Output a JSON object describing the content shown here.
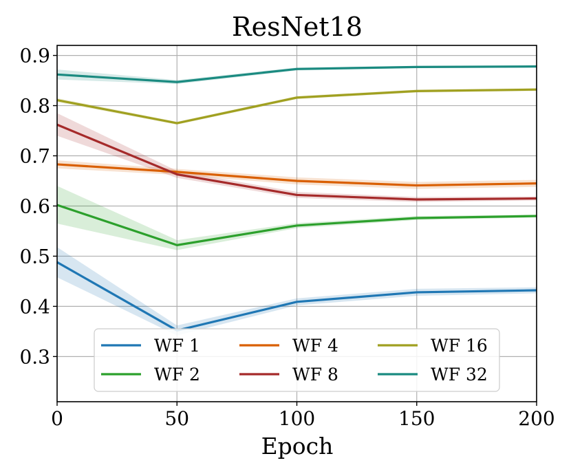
{
  "chart_data": {
    "type": "line",
    "title": "ResNet18",
    "xlabel": "Epoch",
    "ylabel": "",
    "xlim": [
      0,
      200
    ],
    "ylim": [
      0.21,
      0.92
    ],
    "xticks": [
      0,
      50,
      100,
      150,
      200
    ],
    "xtick_labels": [
      "0",
      "50",
      "100",
      "150",
      "200"
    ],
    "yticks": [
      0.3,
      0.4,
      0.5,
      0.6,
      0.7,
      0.8,
      0.9
    ],
    "ytick_labels": [
      "0.3",
      "0.4",
      "0.5",
      "0.6",
      "0.7",
      "0.8",
      "0.9"
    ],
    "grid": true,
    "legend_position": "lower center",
    "legend_columns": 3,
    "x": [
      0,
      50,
      100,
      150,
      200
    ],
    "series": [
      {
        "name": "WF 1",
        "color": "#1f77b4",
        "values": [
          0.488,
          0.352,
          0.409,
          0.428,
          0.432
        ],
        "lower": [
          0.458,
          0.342,
          0.402,
          0.421,
          0.426
        ],
        "upper": [
          0.518,
          0.362,
          0.416,
          0.435,
          0.438
        ]
      },
      {
        "name": "WF 2",
        "color": "#2ca02c",
        "values": [
          0.602,
          0.522,
          0.561,
          0.576,
          0.58
        ],
        "lower": [
          0.565,
          0.512,
          0.556,
          0.572,
          0.577
        ],
        "upper": [
          0.64,
          0.532,
          0.566,
          0.58,
          0.583
        ]
      },
      {
        "name": "WF 4",
        "color": "#d95f02",
        "values": [
          0.683,
          0.668,
          0.65,
          0.641,
          0.645
        ],
        "lower": [
          0.675,
          0.662,
          0.643,
          0.634,
          0.638
        ],
        "upper": [
          0.691,
          0.674,
          0.657,
          0.648,
          0.652
        ]
      },
      {
        "name": "WF 8",
        "color": "#a52a2a",
        "values": [
          0.762,
          0.663,
          0.622,
          0.613,
          0.615
        ],
        "lower": [
          0.74,
          0.656,
          0.616,
          0.608,
          0.611
        ],
        "upper": [
          0.785,
          0.67,
          0.628,
          0.618,
          0.619
        ]
      },
      {
        "name": "WF 16",
        "color": "#a0a020",
        "values": [
          0.811,
          0.765,
          0.816,
          0.829,
          0.832
        ],
        "lower": [
          0.807,
          0.762,
          0.813,
          0.826,
          0.829
        ],
        "upper": [
          0.815,
          0.768,
          0.819,
          0.832,
          0.835
        ]
      },
      {
        "name": "WF 32",
        "color": "#1a8a80",
        "values": [
          0.862,
          0.847,
          0.873,
          0.877,
          0.878
        ],
        "lower": [
          0.852,
          0.843,
          0.87,
          0.875,
          0.876
        ],
        "upper": [
          0.872,
          0.851,
          0.876,
          0.879,
          0.88
        ]
      }
    ]
  }
}
